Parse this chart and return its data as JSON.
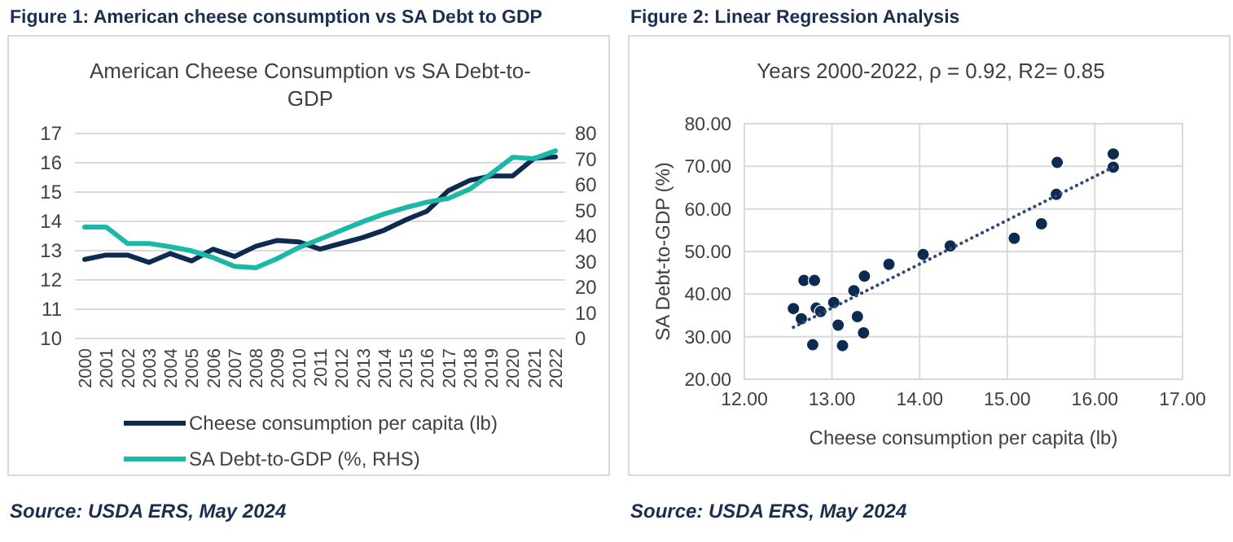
{
  "chart_data": [
    {
      "type": "line",
      "title": "Figure 1: American cheese consumption vs SA Debt to GDP",
      "subtitle": "American Cheese Consumption vs SA Debt-to-GDP",
      "categories": [
        "2000",
        "2001",
        "2002",
        "2003",
        "2004",
        "2005",
        "2006",
        "2007",
        "2008",
        "2009",
        "2010",
        "2011",
        "2012",
        "2013",
        "2014",
        "2015",
        "2016",
        "2017",
        "2018",
        "2019",
        "2020",
        "2021",
        "2022"
      ],
      "series": [
        {
          "name": "Cheese consumption per capita (lb)",
          "color": "#0d2b50",
          "values": [
            12.7,
            12.85,
            12.85,
            12.6,
            12.9,
            12.65,
            13.05,
            12.8,
            13.15,
            13.35,
            13.3,
            13.05,
            13.25,
            13.45,
            13.7,
            14.05,
            14.35,
            15.05,
            15.4,
            15.55,
            15.55,
            16.15,
            16.2
          ]
        },
        {
          "name": "SA Debt-to-GDP (%, RHS)",
          "color": "#1bb8a8",
          "axis": "y2",
          "values": [
            43.5,
            43.5,
            37.1,
            37.1,
            35.8,
            34.2,
            31.6,
            28.2,
            27.6,
            31.2,
            35.5,
            38.8,
            42.2,
            45.6,
            48.6,
            51.1,
            53.2,
            54.7,
            58.3,
            64.3,
            70.7,
            70.2,
            73.2
          ]
        }
      ],
      "ylim": [
        10,
        17
      ],
      "yticks": [
        10,
        11,
        12,
        13,
        14,
        15,
        16,
        17
      ],
      "y2lim": [
        0,
        80
      ],
      "y2ticks": [
        0,
        10,
        20,
        30,
        40,
        50,
        60,
        70,
        80
      ],
      "grid": "y",
      "legend": "bottom",
      "line_style": "solid",
      "annotations": [
        "Source: USDA ERS, May 2024"
      ]
    },
    {
      "type": "scatter",
      "title": "Figure 2: Linear Regression Analysis",
      "subtitle": "Years 2000-2022, ρ = 0.92, R2= 0.85",
      "xlabel": "Cheese consumption per capita (lb)",
      "ylabel": "SA Debt-to-GDP (%)",
      "x": [
        12.56,
        12.65,
        12.68,
        12.8,
        12.78,
        12.82,
        12.87,
        13.02,
        13.07,
        13.12,
        13.25,
        13.29,
        13.36,
        13.37,
        13.65,
        14.04,
        14.35,
        15.08,
        15.39,
        15.56,
        15.57,
        16.21,
        16.21
      ],
      "series": [
        {
          "color": "#0d2b50",
          "marker": "circle",
          "values": [
            36.6,
            34.2,
            43.2,
            43.2,
            28.1,
            36.7,
            35.9,
            38.0,
            32.7,
            27.9,
            40.8,
            34.7,
            30.9,
            44.2,
            47.0,
            49.3,
            51.3,
            53.1,
            56.5,
            63.4,
            70.9,
            72.9,
            69.8
          ]
        },
        {
          "type": "line",
          "color": "#2e4a7a",
          "x": [
            12.56,
            16.21
          ],
          "values": [
            32.2,
            69.8
          ],
          "line_style": "dotted"
        }
      ],
      "xlim": [
        12,
        17
      ],
      "xticks": [
        {
          "value": 12,
          "label": "12.00"
        },
        {
          "value": 13,
          "label": "13.00"
        },
        {
          "value": 14,
          "label": "14.00"
        },
        {
          "value": 15,
          "label": "15.00"
        },
        {
          "value": 16,
          "label": "16.00"
        },
        {
          "value": 17,
          "label": "17.00"
        }
      ],
      "ylim": [
        20,
        80
      ],
      "yticks": [
        {
          "value": 20,
          "label": "20.00"
        },
        {
          "value": 30,
          "label": "30.00"
        },
        {
          "value": 40,
          "label": "40.00"
        },
        {
          "value": 50,
          "label": "50.00"
        },
        {
          "value": 60,
          "label": "60.00"
        },
        {
          "value": 70,
          "label": "70.00"
        },
        {
          "value": 80,
          "label": "80.00"
        }
      ],
      "grid": true,
      "legend": false,
      "annotations": [
        "Source: USDA ERS, May 2024"
      ]
    }
  ]
}
